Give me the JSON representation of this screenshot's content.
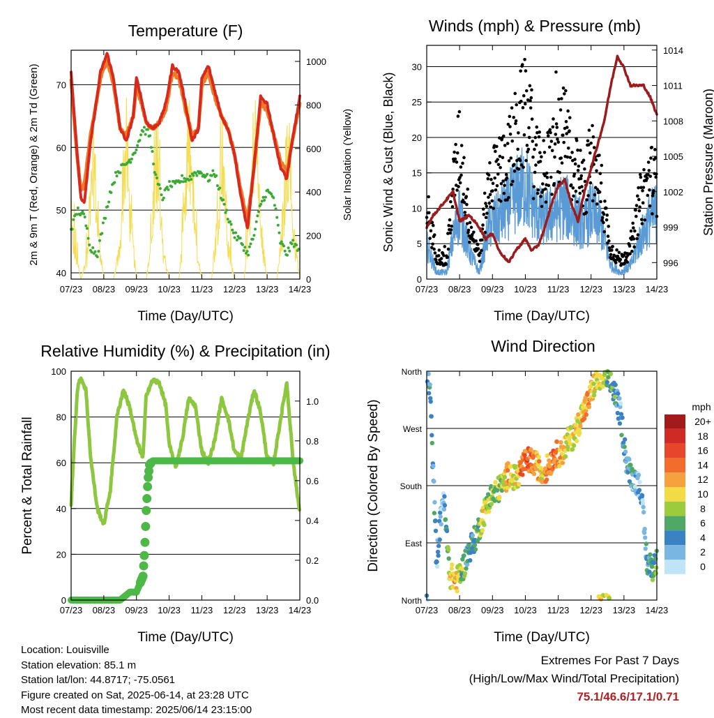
{
  "figure": {
    "x_ticks": [
      "07/23",
      "08/23",
      "09/23",
      "10/23",
      "11/23",
      "12/23",
      "13/23",
      "14/23"
    ],
    "x_label": "Time (Day/UTC)"
  },
  "colors": {
    "t2m": "#d62a1e",
    "t9m": "#f07a28",
    "td": "#3aaa35",
    "solar": "#f5dc50",
    "wind": "#5b9bd5",
    "gust": "#000000",
    "pressure": "#9b1c1c",
    "rh": "#8dc63f",
    "precip": "#4db848"
  },
  "panels": {
    "temperature": {
      "title": "Temperature (F)",
      "ylabel_left": "2m & 9m T (Red, Orange) & 2m Td (Green)",
      "ylabel_right": "Solar Insolation (Yellow)",
      "yticks_left": [
        "40",
        "50",
        "60",
        "70"
      ],
      "yticks_right": [
        "0",
        "200",
        "400",
        "600",
        "800",
        "1000"
      ]
    },
    "winds": {
      "title": "Winds (mph) & Pressure (mb)",
      "ylabel_left": "Sonic Wind & Gust (Blue, Black)",
      "ylabel_right": "Station Pressure (Maroon)",
      "yticks_left": [
        "0",
        "5",
        "10",
        "15",
        "20",
        "25",
        "30"
      ],
      "yticks_right": [
        "996",
        "999",
        "1002",
        "1005",
        "1008",
        "1011",
        "1014"
      ]
    },
    "humidity": {
      "title": "Relative Humidity (%) & Precipitation (in)",
      "ylabel_left": "Percent & Total Rainfall",
      "yticks_left": [
        "0",
        "20",
        "40",
        "60",
        "80",
        "100"
      ],
      "yticks_right": [
        "0.0",
        "0.2",
        "0.4",
        "0.6",
        "0.8",
        "1.0"
      ]
    },
    "direction": {
      "title": "Wind Direction",
      "ylabel_left": "Direction (Colored By Speed)",
      "yticks_left": [
        "North",
        "East",
        "South",
        "West",
        "North"
      ],
      "legend_title": "mph",
      "legend_labels": [
        "20+",
        "18",
        "16",
        "14",
        "12",
        "10",
        "8",
        "6",
        "4",
        "2",
        "0"
      ],
      "legend_colors": [
        "#a31a1a",
        "#cf2a26",
        "#e8462b",
        "#f26c2c",
        "#f6a13d",
        "#f2dc45",
        "#9ccb3d",
        "#4fa866",
        "#3a82c4",
        "#7ab6e2",
        "#bfe3f7"
      ]
    }
  },
  "chart_data": [
    {
      "type": "line",
      "title": "Temperature (F)",
      "xlabel": "Time (Day/UTC)",
      "ylabel": "2m & 9m T (Red, Orange) & 2m Td (Green)",
      "y2label": "Solar Insolation (Yellow)",
      "x_range": [
        7,
        14
      ],
      "ylim": [
        39,
        75.5
      ],
      "y2lim": [
        0,
        1000
      ],
      "series": [
        {
          "name": "2m T",
          "axis": "left",
          "x": [
            7,
            7.1,
            7.2,
            7.3,
            7.4,
            7.6,
            7.9,
            8.1,
            8.3,
            8.5,
            8.7,
            8.9,
            9.0,
            9.1,
            9.3,
            9.5,
            9.7,
            9.9,
            10.1,
            10.3,
            10.5,
            10.7,
            10.9,
            11.0,
            11.2,
            11.4,
            11.6,
            11.8,
            12.0,
            12.2,
            12.4,
            12.6,
            12.8,
            13.0,
            13.2,
            13.4,
            13.6,
            13.8,
            14.0
          ],
          "y": [
            72,
            65,
            58,
            52,
            51,
            61,
            72,
            75,
            71,
            63,
            61,
            65,
            71,
            69,
            64,
            63,
            64,
            67,
            73,
            72,
            67,
            61,
            63,
            71,
            73,
            69,
            65,
            63,
            59,
            52,
            47,
            57,
            68,
            67,
            62,
            57,
            55,
            62,
            68
          ]
        },
        {
          "name": "9m T",
          "axis": "left",
          "x": [
            7,
            7.1,
            7.2,
            7.3,
            7.4,
            7.6,
            7.9,
            8.1,
            8.3,
            8.5,
            8.7,
            8.9,
            9.0,
            9.1,
            9.3,
            9.5,
            9.7,
            9.9,
            10.1,
            10.3,
            10.5,
            10.7,
            10.9,
            11.0,
            11.2,
            11.4,
            11.6,
            11.8,
            12.0,
            12.2,
            12.4,
            12.6,
            12.8,
            13.0,
            13.2,
            13.4,
            13.6,
            13.8,
            14.0
          ],
          "y": [
            71,
            64,
            58,
            53,
            54,
            62,
            71,
            74,
            70,
            63,
            62,
            65,
            70,
            68,
            64,
            63,
            64,
            66,
            72,
            71,
            66,
            62,
            63,
            70,
            72,
            68,
            65,
            63,
            59,
            53,
            48,
            57,
            67,
            66,
            62,
            58,
            56,
            62,
            67
          ]
        },
        {
          "name": "2m Td",
          "axis": "left",
          "x": [
            7,
            7.2,
            7.4,
            7.6,
            7.8,
            8.0,
            8.2,
            8.4,
            8.6,
            8.8,
            9.0,
            9.2,
            9.4,
            9.6,
            9.8,
            10.0,
            10.2,
            10.4,
            10.6,
            10.8,
            11.0,
            11.2,
            11.4,
            11.6,
            11.8,
            12.0,
            12.2,
            12.4,
            12.6,
            12.8,
            13.0,
            13.2,
            13.4,
            13.6,
            13.8,
            14.0
          ],
          "y": [
            47,
            50,
            49,
            44,
            43,
            48,
            53,
            56,
            57,
            58,
            60,
            63,
            62,
            55,
            52,
            54,
            54,
            55,
            55,
            56,
            56,
            55,
            56,
            52,
            49,
            46,
            45,
            43,
            46,
            51,
            53,
            52,
            45,
            43,
            45,
            43
          ]
        },
        {
          "name": "Solar",
          "axis": "right",
          "x": [
            7,
            7.3,
            7.5,
            7.6,
            7.7,
            7.8,
            8.0,
            8.3,
            8.5,
            8.6,
            8.7,
            8.8,
            9.0,
            9.3,
            9.5,
            9.6,
            9.7,
            9.8,
            10.0,
            10.3,
            10.5,
            10.6,
            10.7,
            10.8,
            11.0,
            11.3,
            11.5,
            11.6,
            11.7,
            11.8,
            12.0,
            12.3,
            12.5,
            12.6,
            12.7,
            12.8,
            13.0,
            13.3,
            13.5,
            13.6,
            13.7,
            13.8,
            14.0
          ],
          "y": [
            300,
            0,
            150,
            500,
            800,
            350,
            0,
            0,
            200,
            700,
            850,
            400,
            0,
            0,
            300,
            800,
            650,
            200,
            0,
            0,
            450,
            850,
            700,
            250,
            0,
            0,
            400,
            900,
            600,
            200,
            0,
            0,
            500,
            950,
            800,
            300,
            0,
            0,
            350,
            850,
            700,
            300,
            0
          ]
        }
      ]
    },
    {
      "type": "line",
      "title": "Winds (mph) & Pressure (mb)",
      "xlabel": "Time (Day/UTC)",
      "ylabel": "Sonic Wind & Gust (Blue, Black)",
      "y2label": "Station Pressure (Maroon)",
      "x_range": [
        7,
        14
      ],
      "ylim": [
        0,
        33
      ],
      "y2lim": [
        994.6,
        1014.4
      ],
      "series": [
        {
          "name": "Sonic Wind",
          "axis": "left",
          "x": [
            7,
            7.3,
            7.6,
            7.8,
            8.0,
            8.3,
            8.6,
            8.9,
            9.2,
            9.5,
            9.8,
            10.0,
            10.3,
            10.6,
            10.9,
            11.2,
            11.5,
            11.8,
            12.0,
            12.3,
            12.6,
            12.9,
            13.2,
            13.5,
            13.8,
            14.0
          ],
          "y": [
            5,
            1,
            1,
            6,
            10,
            4,
            1,
            8,
            9,
            11,
            13,
            14,
            10,
            9,
            10,
            11,
            9,
            8,
            10,
            8,
            2,
            1,
            2,
            6,
            9,
            10
          ]
        },
        {
          "name": "Gust",
          "axis": "left",
          "x": [
            7,
            7.3,
            7.6,
            7.8,
            8.0,
            8.3,
            8.6,
            8.9,
            9.2,
            9.5,
            9.8,
            10.0,
            10.3,
            10.6,
            10.9,
            11.2,
            11.5,
            11.8,
            12.0,
            12.3,
            12.6,
            12.9,
            13.2,
            13.5,
            13.8,
            14.0
          ],
          "y": [
            12,
            4,
            3,
            15,
            22,
            9,
            4,
            16,
            18,
            20,
            25,
            28,
            19,
            17,
            22,
            24,
            18,
            15,
            20,
            15,
            5,
            3,
            5,
            13,
            17,
            16
          ]
        },
        {
          "name": "Station Pressure",
          "axis": "right",
          "x": [
            7,
            7.2,
            7.5,
            7.8,
            8.0,
            8.3,
            8.6,
            8.8,
            9.0,
            9.2,
            9.5,
            9.7,
            10.0,
            10.2,
            10.4,
            10.6,
            10.8,
            11.0,
            11.2,
            11.4,
            11.6,
            11.8,
            12.0,
            12.2,
            12.4,
            12.6,
            12.8,
            13.0,
            13.2,
            13.4,
            13.6,
            13.8,
            14.0
          ],
          "y": [
            999,
            1000,
            1001,
            1002,
            999.5,
            1000,
            999,
            998,
            998.5,
            997,
            996,
            997,
            998,
            997,
            997.5,
            999,
            1001,
            1002.5,
            1003,
            1001,
            999.5,
            1002,
            1004,
            1006,
            1008,
            1011,
            1013.5,
            1012.5,
            1011,
            1011,
            1011,
            1010,
            1008.5
          ]
        }
      ]
    },
    {
      "type": "line",
      "title": "Relative Humidity (%) & Precipitation (in)",
      "xlabel": "Time (Day/UTC)",
      "ylabel": "Percent & Total Rainfall",
      "x_range": [
        7,
        14
      ],
      "ylim": [
        0,
        100
      ],
      "y2lim": [
        0,
        1.15
      ],
      "series": [
        {
          "name": "Relative Humidity",
          "axis": "left",
          "x": [
            7,
            7.1,
            7.2,
            7.3,
            7.45,
            7.6,
            7.8,
            8.0,
            8.2,
            8.4,
            8.6,
            8.8,
            9.0,
            9.2,
            9.3,
            9.5,
            9.7,
            9.9,
            10.0,
            10.2,
            10.4,
            10.6,
            10.8,
            11.0,
            11.2,
            11.4,
            11.6,
            11.8,
            12.0,
            12.2,
            12.4,
            12.6,
            12.8,
            13.0,
            13.2,
            13.4,
            13.6,
            13.8,
            14.0
          ],
          "y": [
            42,
            70,
            93,
            97,
            92,
            62,
            40,
            33,
            48,
            80,
            92,
            84,
            70,
            62,
            90,
            96,
            95,
            85,
            68,
            58,
            70,
            88,
            85,
            65,
            60,
            70,
            88,
            80,
            65,
            62,
            78,
            92,
            82,
            62,
            60,
            78,
            95,
            60,
            38
          ]
        },
        {
          "name": "Total Precipitation",
          "axis": "right",
          "x": [
            7,
            7.5,
            8.0,
            8.5,
            8.8,
            9.0,
            9.1,
            9.2,
            9.25,
            9.3,
            9.35,
            9.4,
            9.5,
            9.7,
            10,
            11,
            12,
            13,
            14
          ],
          "y": [
            0,
            0,
            0,
            0,
            0.04,
            0.04,
            0.08,
            0.12,
            0.25,
            0.45,
            0.6,
            0.68,
            0.7,
            0.7,
            0.7,
            0.7,
            0.7,
            0.7,
            0.7
          ]
        }
      ]
    },
    {
      "type": "scatter",
      "title": "Wind Direction",
      "xlabel": "Time (Day/UTC)",
      "ylabel": "Direction (Colored By Speed)",
      "x_range": [
        7,
        14
      ],
      "y_categories": [
        "North",
        "East",
        "South",
        "West",
        "North"
      ],
      "color_scale_label": "mph",
      "x": [
        7,
        7.1,
        7.3,
        7.5,
        7.7,
        7.9,
        8.1,
        8.3,
        8.5,
        8.7,
        8.9,
        9.1,
        9.3,
        9.5,
        9.7,
        9.9,
        10.1,
        10.3,
        10.5,
        10.7,
        10.9,
        11.1,
        11.3,
        11.5,
        11.7,
        11.9,
        12.1,
        12.3,
        12.5,
        12.7,
        12.9,
        13.1,
        13.3,
        13.5,
        13.7,
        13.9,
        14.0
      ],
      "direction_deg": [
        355,
        330,
        60,
        170,
        40,
        30,
        50,
        80,
        100,
        130,
        160,
        170,
        180,
        200,
        190,
        210,
        220,
        215,
        200,
        210,
        230,
        230,
        250,
        260,
        290,
        310,
        340,
        350,
        350,
        330,
        290,
        210,
        190,
        180,
        60,
        50,
        60
      ],
      "speed": [
        2,
        4,
        3,
        1,
        10,
        11,
        6,
        4,
        5,
        9,
        8,
        7,
        8,
        12,
        9,
        14,
        15,
        12,
        10,
        13,
        14,
        12,
        9,
        10,
        11,
        12,
        9,
        10,
        7,
        5,
        3,
        4,
        3,
        2,
        4,
        6,
        7
      ]
    }
  ],
  "footer": {
    "location": "Location: Louisville",
    "elevation": "Station elevation: 85.1 m",
    "latlon": "Station lat/lon: 44.8717; -75.0561",
    "created": "Figure created on Sat, 2025-06-14, at 23:28 UTC",
    "recent": "Most recent data timestamp: 2025/06/14 23:15:00",
    "extremes_title": "Extremes For Past 7 Days",
    "extremes_sub": "(High/Low/Max Wind/Total Precipitation)",
    "extremes_values": "75.1/46.6/17.1/0.71"
  }
}
